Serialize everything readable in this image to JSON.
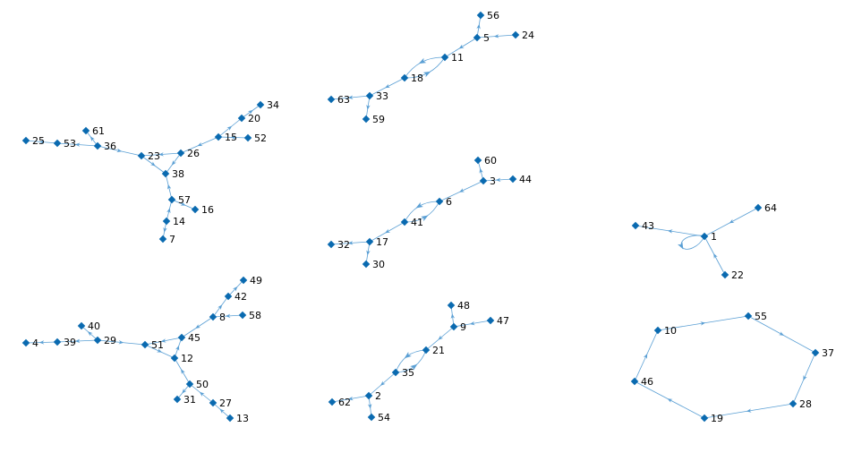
{
  "colors": {
    "edge": "#5a9fd4",
    "node": "#0a6ab0",
    "label": "#000000",
    "background": "#ffffff"
  },
  "graph": {
    "nodes": [
      {
        "id": "56",
        "label": "56"
      },
      {
        "id": "5",
        "label": "5"
      },
      {
        "id": "24",
        "label": "24"
      },
      {
        "id": "11",
        "label": "11"
      },
      {
        "id": "18",
        "label": "18"
      },
      {
        "id": "63",
        "label": "63"
      },
      {
        "id": "33",
        "label": "33"
      },
      {
        "id": "59",
        "label": "59"
      },
      {
        "id": "34",
        "label": "34"
      },
      {
        "id": "20",
        "label": "20"
      },
      {
        "id": "15",
        "label": "15"
      },
      {
        "id": "52",
        "label": "52"
      },
      {
        "id": "26",
        "label": "26"
      },
      {
        "id": "61",
        "label": "61"
      },
      {
        "id": "25",
        "label": "25"
      },
      {
        "id": "53",
        "label": "53"
      },
      {
        "id": "36",
        "label": "36"
      },
      {
        "id": "23",
        "label": "23"
      },
      {
        "id": "38",
        "label": "38"
      },
      {
        "id": "57",
        "label": "57"
      },
      {
        "id": "16",
        "label": "16"
      },
      {
        "id": "14",
        "label": "14"
      },
      {
        "id": "7",
        "label": "7"
      },
      {
        "id": "60",
        "label": "60"
      },
      {
        "id": "3",
        "label": "3"
      },
      {
        "id": "44",
        "label": "44"
      },
      {
        "id": "6",
        "label": "6"
      },
      {
        "id": "41",
        "label": "41"
      },
      {
        "id": "32",
        "label": "32"
      },
      {
        "id": "17",
        "label": "17"
      },
      {
        "id": "30",
        "label": "30"
      },
      {
        "id": "64",
        "label": "64"
      },
      {
        "id": "43",
        "label": "43"
      },
      {
        "id": "1",
        "label": "1"
      },
      {
        "id": "22",
        "label": "22"
      },
      {
        "id": "49",
        "label": "49"
      },
      {
        "id": "42",
        "label": "42"
      },
      {
        "id": "8",
        "label": "8"
      },
      {
        "id": "58",
        "label": "58"
      },
      {
        "id": "40",
        "label": "40"
      },
      {
        "id": "45",
        "label": "45"
      },
      {
        "id": "4",
        "label": "4"
      },
      {
        "id": "39",
        "label": "39"
      },
      {
        "id": "29",
        "label": "29"
      },
      {
        "id": "51",
        "label": "51"
      },
      {
        "id": "12",
        "label": "12"
      },
      {
        "id": "50",
        "label": "50"
      },
      {
        "id": "31",
        "label": "31"
      },
      {
        "id": "27",
        "label": "27"
      },
      {
        "id": "13",
        "label": "13"
      },
      {
        "id": "48",
        "label": "48"
      },
      {
        "id": "9",
        "label": "9"
      },
      {
        "id": "47",
        "label": "47"
      },
      {
        "id": "21",
        "label": "21"
      },
      {
        "id": "35",
        "label": "35"
      },
      {
        "id": "62",
        "label": "62"
      },
      {
        "id": "2",
        "label": "2"
      },
      {
        "id": "54",
        "label": "54"
      },
      {
        "id": "55",
        "label": "55"
      },
      {
        "id": "10",
        "label": "10"
      },
      {
        "id": "37",
        "label": "37"
      },
      {
        "id": "46",
        "label": "46"
      },
      {
        "id": "28",
        "label": "28"
      },
      {
        "id": "19",
        "label": "19"
      }
    ],
    "edges": [
      {
        "from": "5",
        "to": "56"
      },
      {
        "from": "24",
        "to": "5"
      },
      {
        "from": "5",
        "to": "11"
      },
      {
        "from": "11",
        "to": "18"
      },
      {
        "from": "18",
        "to": "11"
      },
      {
        "from": "18",
        "to": "33"
      },
      {
        "from": "33",
        "to": "63"
      },
      {
        "from": "33",
        "to": "59"
      },
      {
        "from": "20",
        "to": "34"
      },
      {
        "from": "15",
        "to": "20"
      },
      {
        "from": "52",
        "to": "15"
      },
      {
        "from": "15",
        "to": "26"
      },
      {
        "from": "26",
        "to": "23"
      },
      {
        "from": "26",
        "to": "38"
      },
      {
        "from": "36",
        "to": "61"
      },
      {
        "from": "53",
        "to": "25"
      },
      {
        "from": "36",
        "to": "53"
      },
      {
        "from": "36",
        "to": "23"
      },
      {
        "from": "23",
        "to": "38"
      },
      {
        "from": "57",
        "to": "38"
      },
      {
        "from": "57",
        "to": "16"
      },
      {
        "from": "14",
        "to": "57"
      },
      {
        "from": "14",
        "to": "7"
      },
      {
        "from": "3",
        "to": "60"
      },
      {
        "from": "44",
        "to": "3"
      },
      {
        "from": "3",
        "to": "6"
      },
      {
        "from": "6",
        "to": "41"
      },
      {
        "from": "41",
        "to": "6"
      },
      {
        "from": "41",
        "to": "17"
      },
      {
        "from": "17",
        "to": "32"
      },
      {
        "from": "17",
        "to": "30"
      },
      {
        "from": "64",
        "to": "1"
      },
      {
        "from": "1",
        "to": "43"
      },
      {
        "from": "22",
        "to": "1"
      },
      {
        "from": "1",
        "to": "1"
      },
      {
        "from": "42",
        "to": "49"
      },
      {
        "from": "8",
        "to": "42"
      },
      {
        "from": "58",
        "to": "8"
      },
      {
        "from": "8",
        "to": "45"
      },
      {
        "from": "29",
        "to": "40"
      },
      {
        "from": "39",
        "to": "4"
      },
      {
        "from": "29",
        "to": "39"
      },
      {
        "from": "29",
        "to": "51"
      },
      {
        "from": "45",
        "to": "51"
      },
      {
        "from": "51",
        "to": "12"
      },
      {
        "from": "12",
        "to": "45"
      },
      {
        "from": "50",
        "to": "12"
      },
      {
        "from": "50",
        "to": "31"
      },
      {
        "from": "27",
        "to": "50"
      },
      {
        "from": "13",
        "to": "27"
      },
      {
        "from": "9",
        "to": "48"
      },
      {
        "from": "47",
        "to": "9"
      },
      {
        "from": "9",
        "to": "21"
      },
      {
        "from": "21",
        "to": "35"
      },
      {
        "from": "35",
        "to": "21"
      },
      {
        "from": "35",
        "to": "2"
      },
      {
        "from": "2",
        "to": "62"
      },
      {
        "from": "2",
        "to": "54"
      },
      {
        "from": "10",
        "to": "55"
      },
      {
        "from": "55",
        "to": "37"
      },
      {
        "from": "37",
        "to": "28"
      },
      {
        "from": "28",
        "to": "19"
      },
      {
        "from": "19",
        "to": "46"
      },
      {
        "from": "46",
        "to": "10"
      }
    ]
  }
}
